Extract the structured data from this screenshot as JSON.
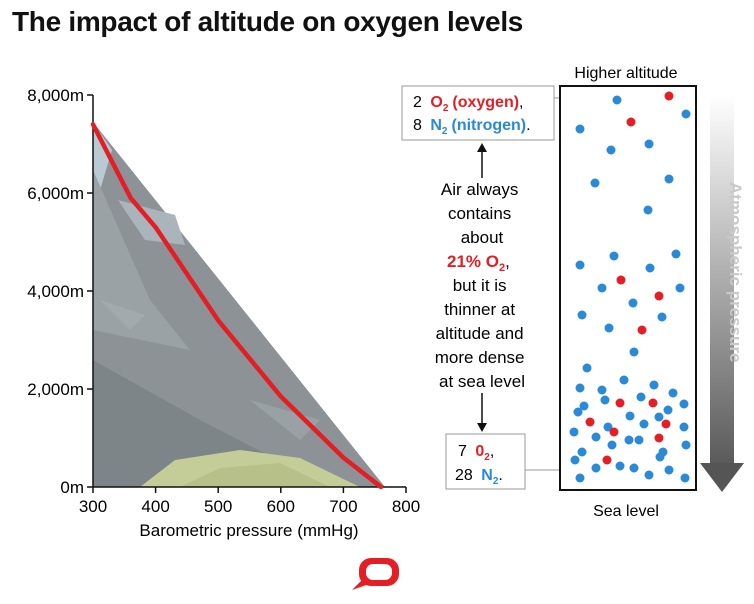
{
  "title": "The impact of altitude on oxygen levels",
  "colors": {
    "line": "#e31e24",
    "oxygen": "#e31e24",
    "nitrogen": "#2a8ad8",
    "logo": "#e31e24",
    "arrow_top": "#ffffff",
    "arrow_bottom": "#555555"
  },
  "chart_data": {
    "type": "line",
    "title": "",
    "xlabel": "Barometric pressure (mmHg)",
    "ylabel": "",
    "xlim": [
      300,
      800
    ],
    "ylim": [
      0,
      8000
    ],
    "x_ticks": [
      "300",
      "400",
      "500",
      "600",
      "700",
      "800"
    ],
    "y_ticks": [
      "0m",
      "2,000m",
      "4,000m",
      "6,000m",
      "8,000m"
    ],
    "grid": false,
    "legend": "none",
    "series": [
      {
        "x": [
          760,
          700,
          600,
          500,
          400,
          360,
          300
        ],
        "y": [
          0,
          600,
          1850,
          3400,
          5300,
          5900,
          7400
        ]
      }
    ]
  },
  "column": {
    "top_label": "Higher altitude",
    "bottom_label": "Sea level",
    "arrow_label": "Atmospheric pressure"
  },
  "top_callout": {
    "o2_count": "2",
    "o2_formula": "O",
    "o2_sub": "2",
    "o2_name": "(oxygen)",
    "o2_punct": ",",
    "n2_count": "8",
    "n2_formula": "N",
    "n2_sub": "2",
    "n2_name": "(nitrogen)",
    "n2_punct": "."
  },
  "bottom_callout": {
    "o2_count": "7",
    "o2_formula": "0",
    "o2_sub": "2",
    "o2_punct": ",",
    "n2_count": "28",
    "n2_formula": "N",
    "n2_sub": "2",
    "n2_punct": "."
  },
  "note": {
    "line1": "Air always",
    "line2": "contains",
    "line3": "about",
    "highlight": "21% O",
    "highlight_sub": "2",
    "highlight_punct": ",",
    "line5": "but it is",
    "line6": "thinner at",
    "line7": "altitude and",
    "line8": "more dense",
    "line9": "at sea level"
  }
}
